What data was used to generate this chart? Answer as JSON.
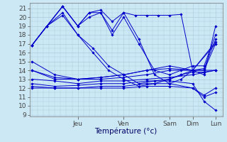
{
  "bg_color": "#cce8f4",
  "grid_color": "#aaccdd",
  "line_color": "#0000cc",
  "ylim_min": 8.8,
  "ylim_max": 21.6,
  "yticks": [
    9,
    10,
    11,
    12,
    13,
    14,
    15,
    16,
    17,
    18,
    19,
    20,
    21
  ],
  "xlim_min": -0.05,
  "xlim_max": 4.15,
  "xlabel": "Température (°c)",
  "day_ticks": [
    1.0,
    2.0,
    3.0,
    3.5,
    4.0
  ],
  "day_labels": [
    "Jeu",
    "Ven",
    "Sam",
    "Dim",
    "Lun"
  ],
  "series": [
    {
      "x": [
        0.0,
        0.33,
        0.67,
        1.0,
        1.25,
        1.5,
        1.75,
        2.0,
        2.25,
        2.5,
        2.75,
        3.0,
        3.25,
        3.5,
        3.75,
        4.0
      ],
      "y": [
        16.8,
        19.0,
        21.2,
        19.0,
        20.5,
        20.8,
        19.5,
        20.5,
        20.2,
        20.2,
        20.2,
        20.2,
        20.3,
        14.0,
        13.5,
        19.0
      ]
    },
    {
      "x": [
        0.0,
        0.33,
        0.67,
        1.0,
        1.25,
        1.5,
        1.75,
        2.0,
        2.33,
        2.67,
        3.0,
        3.25,
        3.5,
        3.75,
        4.0
      ],
      "y": [
        16.8,
        19.0,
        21.2,
        19.0,
        20.5,
        20.5,
        18.5,
        20.5,
        17.5,
        13.5,
        12.5,
        13.0,
        14.0,
        14.2,
        17.5
      ]
    },
    {
      "x": [
        0.0,
        0.33,
        0.67,
        1.0,
        1.25,
        1.5,
        1.75,
        2.0,
        2.33,
        2.67,
        3.0,
        3.25,
        3.5,
        3.75,
        4.0
      ],
      "y": [
        16.8,
        19.0,
        21.2,
        19.0,
        20.0,
        20.5,
        18.0,
        20.0,
        17.0,
        14.0,
        13.5,
        14.0,
        14.5,
        14.5,
        18.0
      ]
    },
    {
      "x": [
        0.0,
        0.33,
        0.67,
        1.0,
        1.33,
        1.67,
        2.0,
        2.33,
        2.67,
        3.0,
        3.25,
        3.5,
        3.75,
        4.0
      ],
      "y": [
        16.8,
        19.0,
        20.5,
        18.0,
        16.5,
        14.5,
        13.5,
        12.5,
        12.8,
        13.0,
        13.5,
        14.0,
        14.0,
        17.0
      ]
    },
    {
      "x": [
        0.0,
        0.33,
        0.67,
        1.0,
        1.33,
        1.67,
        2.0,
        2.33,
        2.67,
        3.0,
        3.25,
        3.5,
        3.75,
        4.0
      ],
      "y": [
        16.8,
        19.0,
        20.2,
        18.0,
        16.0,
        14.0,
        13.0,
        12.2,
        12.5,
        13.0,
        13.5,
        13.8,
        13.8,
        14.0
      ]
    },
    {
      "x": [
        0.0,
        0.5,
        1.0,
        1.5,
        2.0,
        2.5,
        3.0,
        3.5,
        4.0
      ],
      "y": [
        15.0,
        13.5,
        13.0,
        13.2,
        13.5,
        14.0,
        14.5,
        14.0,
        17.2
      ]
    },
    {
      "x": [
        0.0,
        0.5,
        1.0,
        1.5,
        2.0,
        2.5,
        3.0,
        3.5,
        4.0
      ],
      "y": [
        14.0,
        13.2,
        13.0,
        13.2,
        13.5,
        14.0,
        14.2,
        14.0,
        17.0
      ]
    },
    {
      "x": [
        0.0,
        0.5,
        1.0,
        1.5,
        2.0,
        2.5,
        3.0,
        3.5,
        4.0
      ],
      "y": [
        14.0,
        13.0,
        13.0,
        13.0,
        13.2,
        13.5,
        14.0,
        14.0,
        14.0
      ]
    },
    {
      "x": [
        0.0,
        0.5,
        1.0,
        1.5,
        2.0,
        2.5,
        3.0,
        3.5,
        4.0
      ],
      "y": [
        13.0,
        12.8,
        12.5,
        12.8,
        12.8,
        13.0,
        13.2,
        13.5,
        14.0
      ]
    },
    {
      "x": [
        0.0,
        0.5,
        1.0,
        1.5,
        2.0,
        2.5,
        3.0,
        3.5,
        3.75,
        4.0
      ],
      "y": [
        12.5,
        12.2,
        12.3,
        12.5,
        12.5,
        12.8,
        12.8,
        12.5,
        10.5,
        9.5
      ]
    },
    {
      "x": [
        0.0,
        0.5,
        1.0,
        1.5,
        2.0,
        2.5,
        3.0,
        3.5,
        3.75,
        4.0
      ],
      "y": [
        12.2,
        12.0,
        12.0,
        12.2,
        12.2,
        12.5,
        12.5,
        12.0,
        11.2,
        12.0
      ]
    },
    {
      "x": [
        0.0,
        0.5,
        1.0,
        1.5,
        2.0,
        2.5,
        3.0,
        3.5,
        3.75,
        4.0
      ],
      "y": [
        12.0,
        12.0,
        12.0,
        12.0,
        12.0,
        12.2,
        12.2,
        12.0,
        11.0,
        11.5
      ]
    }
  ]
}
